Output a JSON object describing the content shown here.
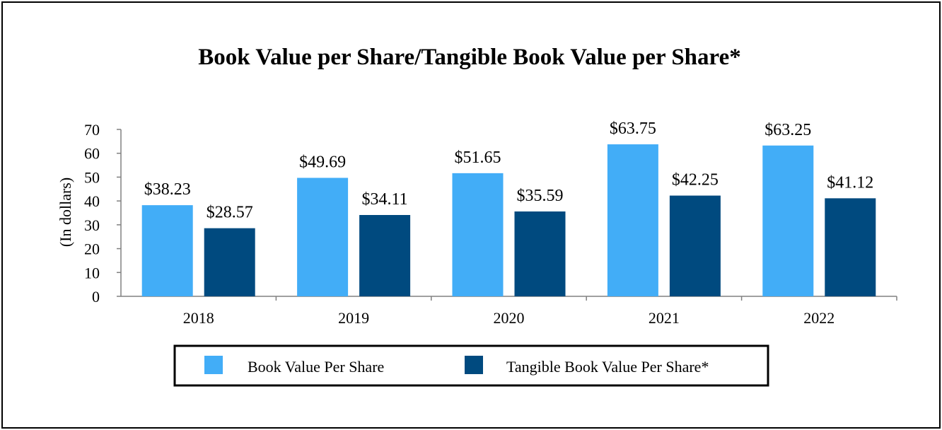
{
  "chart_data": {
    "type": "bar",
    "title": "Book Value per Share/Tangible Book Value per Share*",
    "xlabel": "",
    "ylabel": "(In dollars)",
    "ylim": [
      0,
      70
    ],
    "yticks": [
      0,
      10,
      20,
      30,
      40,
      50,
      60,
      70
    ],
    "categories": [
      "2018",
      "2019",
      "2020",
      "2021",
      "2022"
    ],
    "series": [
      {
        "name": "Book Value Per Share",
        "color": "#42adf7",
        "values": [
          38.23,
          49.69,
          51.65,
          63.75,
          63.25
        ],
        "labels": [
          "$38.23",
          "$49.69",
          "$51.65",
          "$63.75",
          "$63.25"
        ]
      },
      {
        "name": "Tangible Book Value Per Share*",
        "color": "#004a7f",
        "values": [
          28.57,
          34.11,
          35.59,
          42.25,
          41.12
        ],
        "labels": [
          "$28.57",
          "$34.11",
          "$35.59",
          "$42.25",
          "$41.12"
        ]
      }
    ],
    "grid": false,
    "legend": "bottom"
  }
}
